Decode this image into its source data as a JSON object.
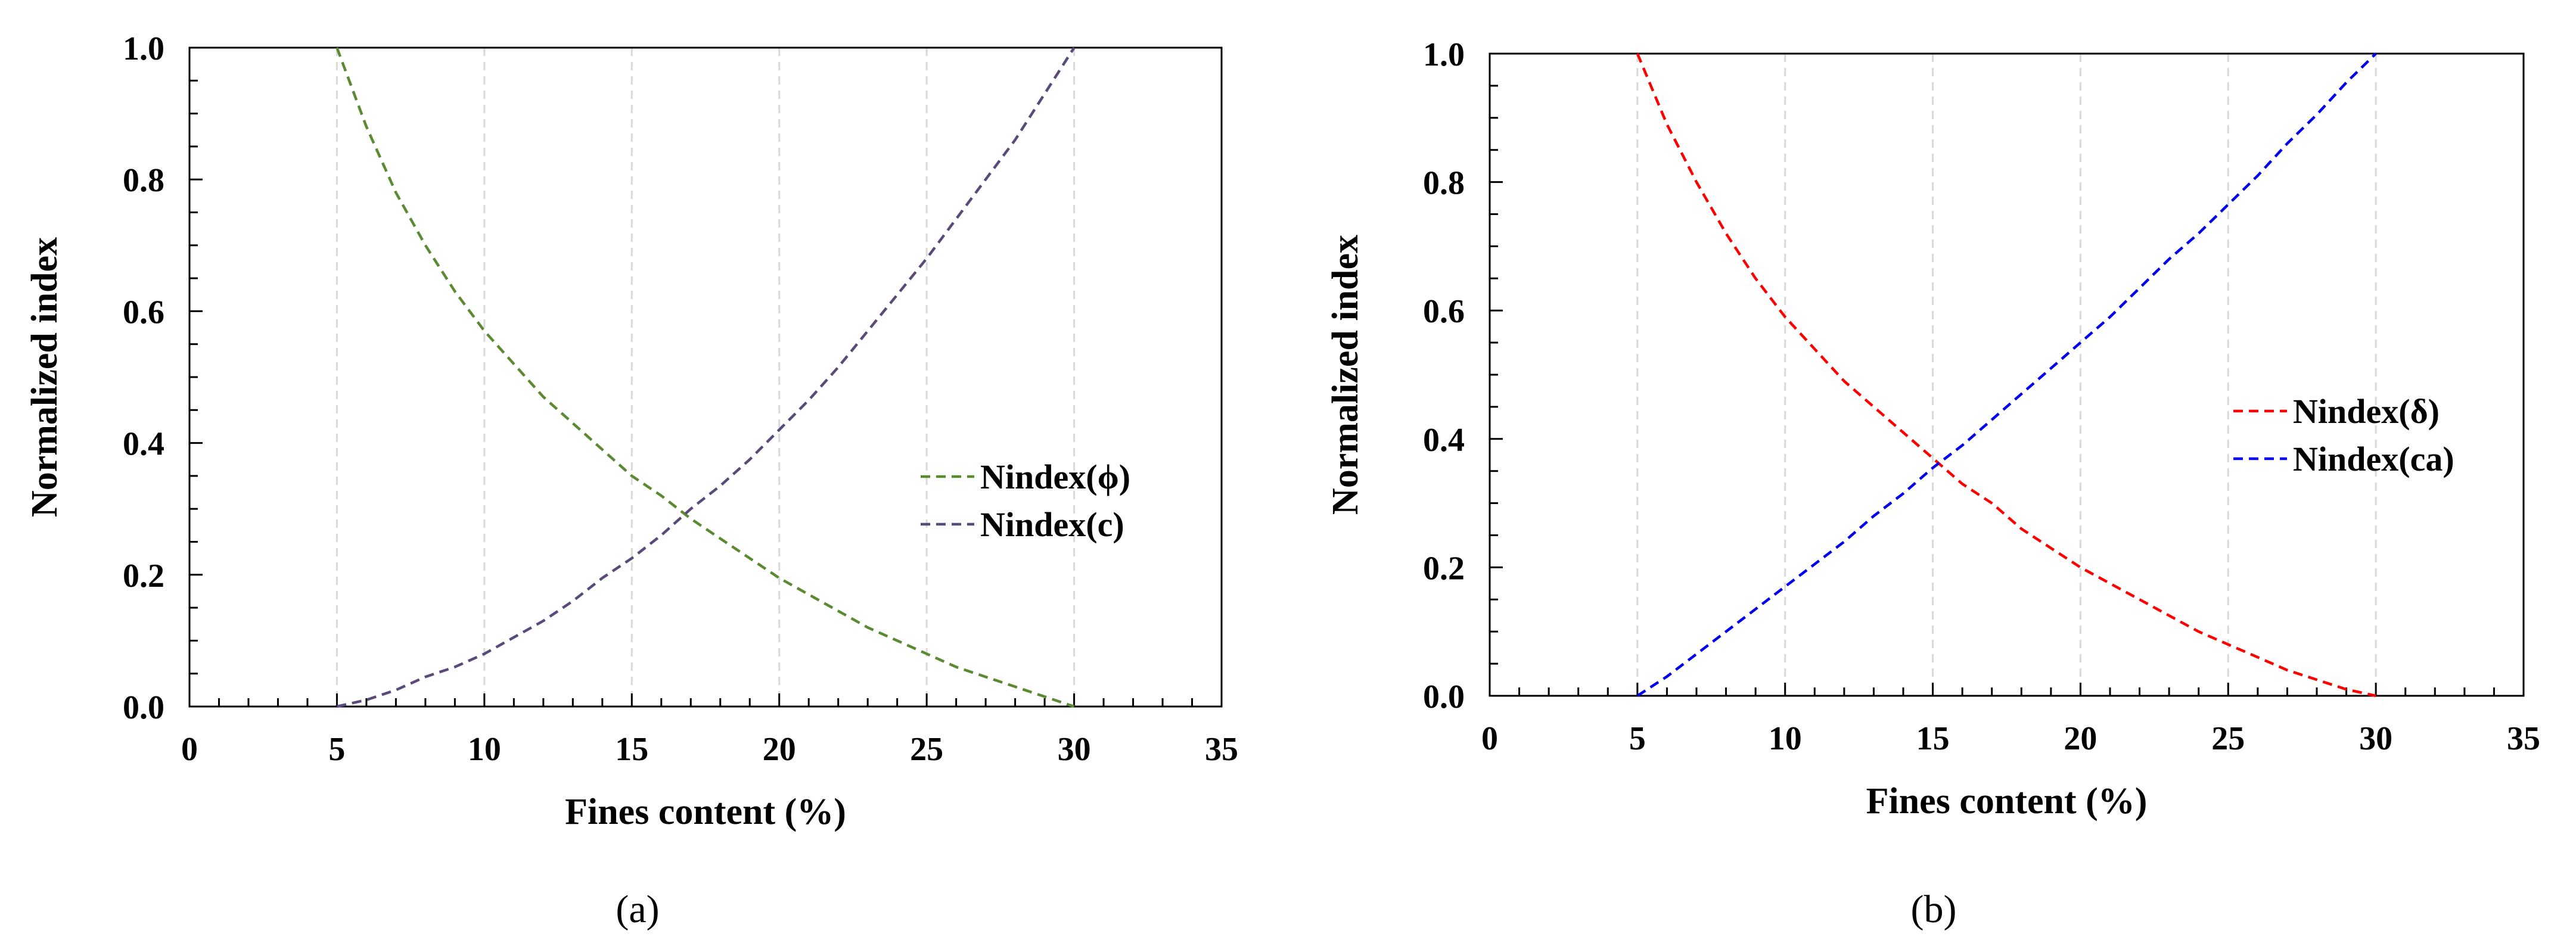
{
  "figure": {
    "panels": [
      "(a)",
      "(b)"
    ]
  },
  "chart_data": [
    {
      "type": "line",
      "panel_label": "(a)",
      "title": "",
      "xlabel": "Fines content (%)",
      "ylabel": "Normalized index",
      "xlim": [
        0,
        35
      ],
      "ylim": [
        0,
        1
      ],
      "x_ticks": [
        0,
        5,
        10,
        15,
        20,
        25,
        30,
        35
      ],
      "x_tick_labels": [
        "0",
        "5",
        "10",
        "15",
        "20",
        "25",
        "30",
        "35"
      ],
      "y_ticks": [
        0,
        0.2,
        0.4,
        0.6,
        0.8,
        1.0
      ],
      "y_tick_labels": [
        "0.0",
        "0.2",
        "0.4",
        "0.6",
        "0.8",
        "1.0"
      ],
      "vertical_gridlines": [
        5,
        10,
        15,
        20,
        25,
        30
      ],
      "legend_position": "right",
      "series": [
        {
          "name": "Nindex(ϕ)",
          "color": "#5b8a32",
          "dash": "dashed",
          "x": [
            5,
            6,
            7,
            8,
            9,
            10,
            11,
            12,
            13,
            14,
            15,
            16,
            17,
            18,
            19,
            20,
            21,
            22,
            23,
            24,
            25,
            26,
            27,
            28,
            29,
            30
          ],
          "y": [
            1.0,
            0.88,
            0.78,
            0.7,
            0.63,
            0.57,
            0.52,
            0.47,
            0.43,
            0.39,
            0.35,
            0.32,
            0.285,
            0.255,
            0.225,
            0.195,
            0.17,
            0.145,
            0.12,
            0.1,
            0.08,
            0.06,
            0.045,
            0.03,
            0.015,
            0.0
          ]
        },
        {
          "name": "Nindex(c)",
          "color": "#5a4a7a",
          "dash": "dashed",
          "x": [
            5,
            6,
            7,
            8,
            9,
            10,
            11,
            12,
            13,
            14,
            15,
            16,
            17,
            18,
            19,
            20,
            21,
            22,
            23,
            24,
            25,
            26,
            27,
            28,
            29,
            30
          ],
          "y": [
            0.0,
            0.01,
            0.025,
            0.045,
            0.06,
            0.08,
            0.105,
            0.13,
            0.16,
            0.195,
            0.225,
            0.26,
            0.3,
            0.335,
            0.375,
            0.42,
            0.465,
            0.515,
            0.57,
            0.625,
            0.68,
            0.74,
            0.8,
            0.86,
            0.93,
            1.0
          ]
        }
      ]
    },
    {
      "type": "line",
      "panel_label": "(b)",
      "title": "",
      "xlabel": "Fines content (%)",
      "ylabel": "Normalized index",
      "xlim": [
        0,
        35
      ],
      "ylim": [
        0,
        1
      ],
      "x_ticks": [
        0,
        5,
        10,
        15,
        20,
        25,
        30,
        35
      ],
      "x_tick_labels": [
        "0",
        "5",
        "10",
        "15",
        "20",
        "25",
        "30",
        "35"
      ],
      "y_ticks": [
        0,
        0.2,
        0.4,
        0.6,
        0.8,
        1.0
      ],
      "y_tick_labels": [
        "0.0",
        "0.2",
        "0.4",
        "0.6",
        "0.8",
        "1.0"
      ],
      "vertical_gridlines": [
        5,
        10,
        15,
        20,
        25,
        30
      ],
      "legend_position": "right",
      "series": [
        {
          "name": "Nindex(δ)",
          "color": "#ff0000",
          "dash": "dashed",
          "x": [
            5,
            6,
            7,
            8,
            9,
            10,
            11,
            12,
            13,
            14,
            15,
            16,
            17,
            18,
            19,
            20,
            21,
            22,
            23,
            24,
            25,
            26,
            27,
            28,
            29,
            30
          ],
          "y": [
            1.0,
            0.89,
            0.8,
            0.72,
            0.65,
            0.59,
            0.54,
            0.49,
            0.45,
            0.41,
            0.37,
            0.33,
            0.3,
            0.26,
            0.23,
            0.2,
            0.175,
            0.15,
            0.125,
            0.1,
            0.08,
            0.06,
            0.04,
            0.025,
            0.01,
            0.0
          ]
        },
        {
          "name": "Nindex(ca)",
          "color": "#0000ee",
          "dash": "dashed",
          "x": [
            5,
            6,
            7,
            8,
            9,
            10,
            11,
            12,
            13,
            14,
            15,
            16,
            17,
            18,
            19,
            20,
            21,
            22,
            23,
            24,
            25,
            26,
            27,
            28,
            29,
            30
          ],
          "y": [
            0.0,
            0.03,
            0.065,
            0.1,
            0.135,
            0.17,
            0.205,
            0.24,
            0.28,
            0.315,
            0.355,
            0.39,
            0.43,
            0.47,
            0.51,
            0.55,
            0.59,
            0.635,
            0.68,
            0.72,
            0.765,
            0.81,
            0.86,
            0.905,
            0.955,
            1.0
          ]
        }
      ]
    }
  ]
}
